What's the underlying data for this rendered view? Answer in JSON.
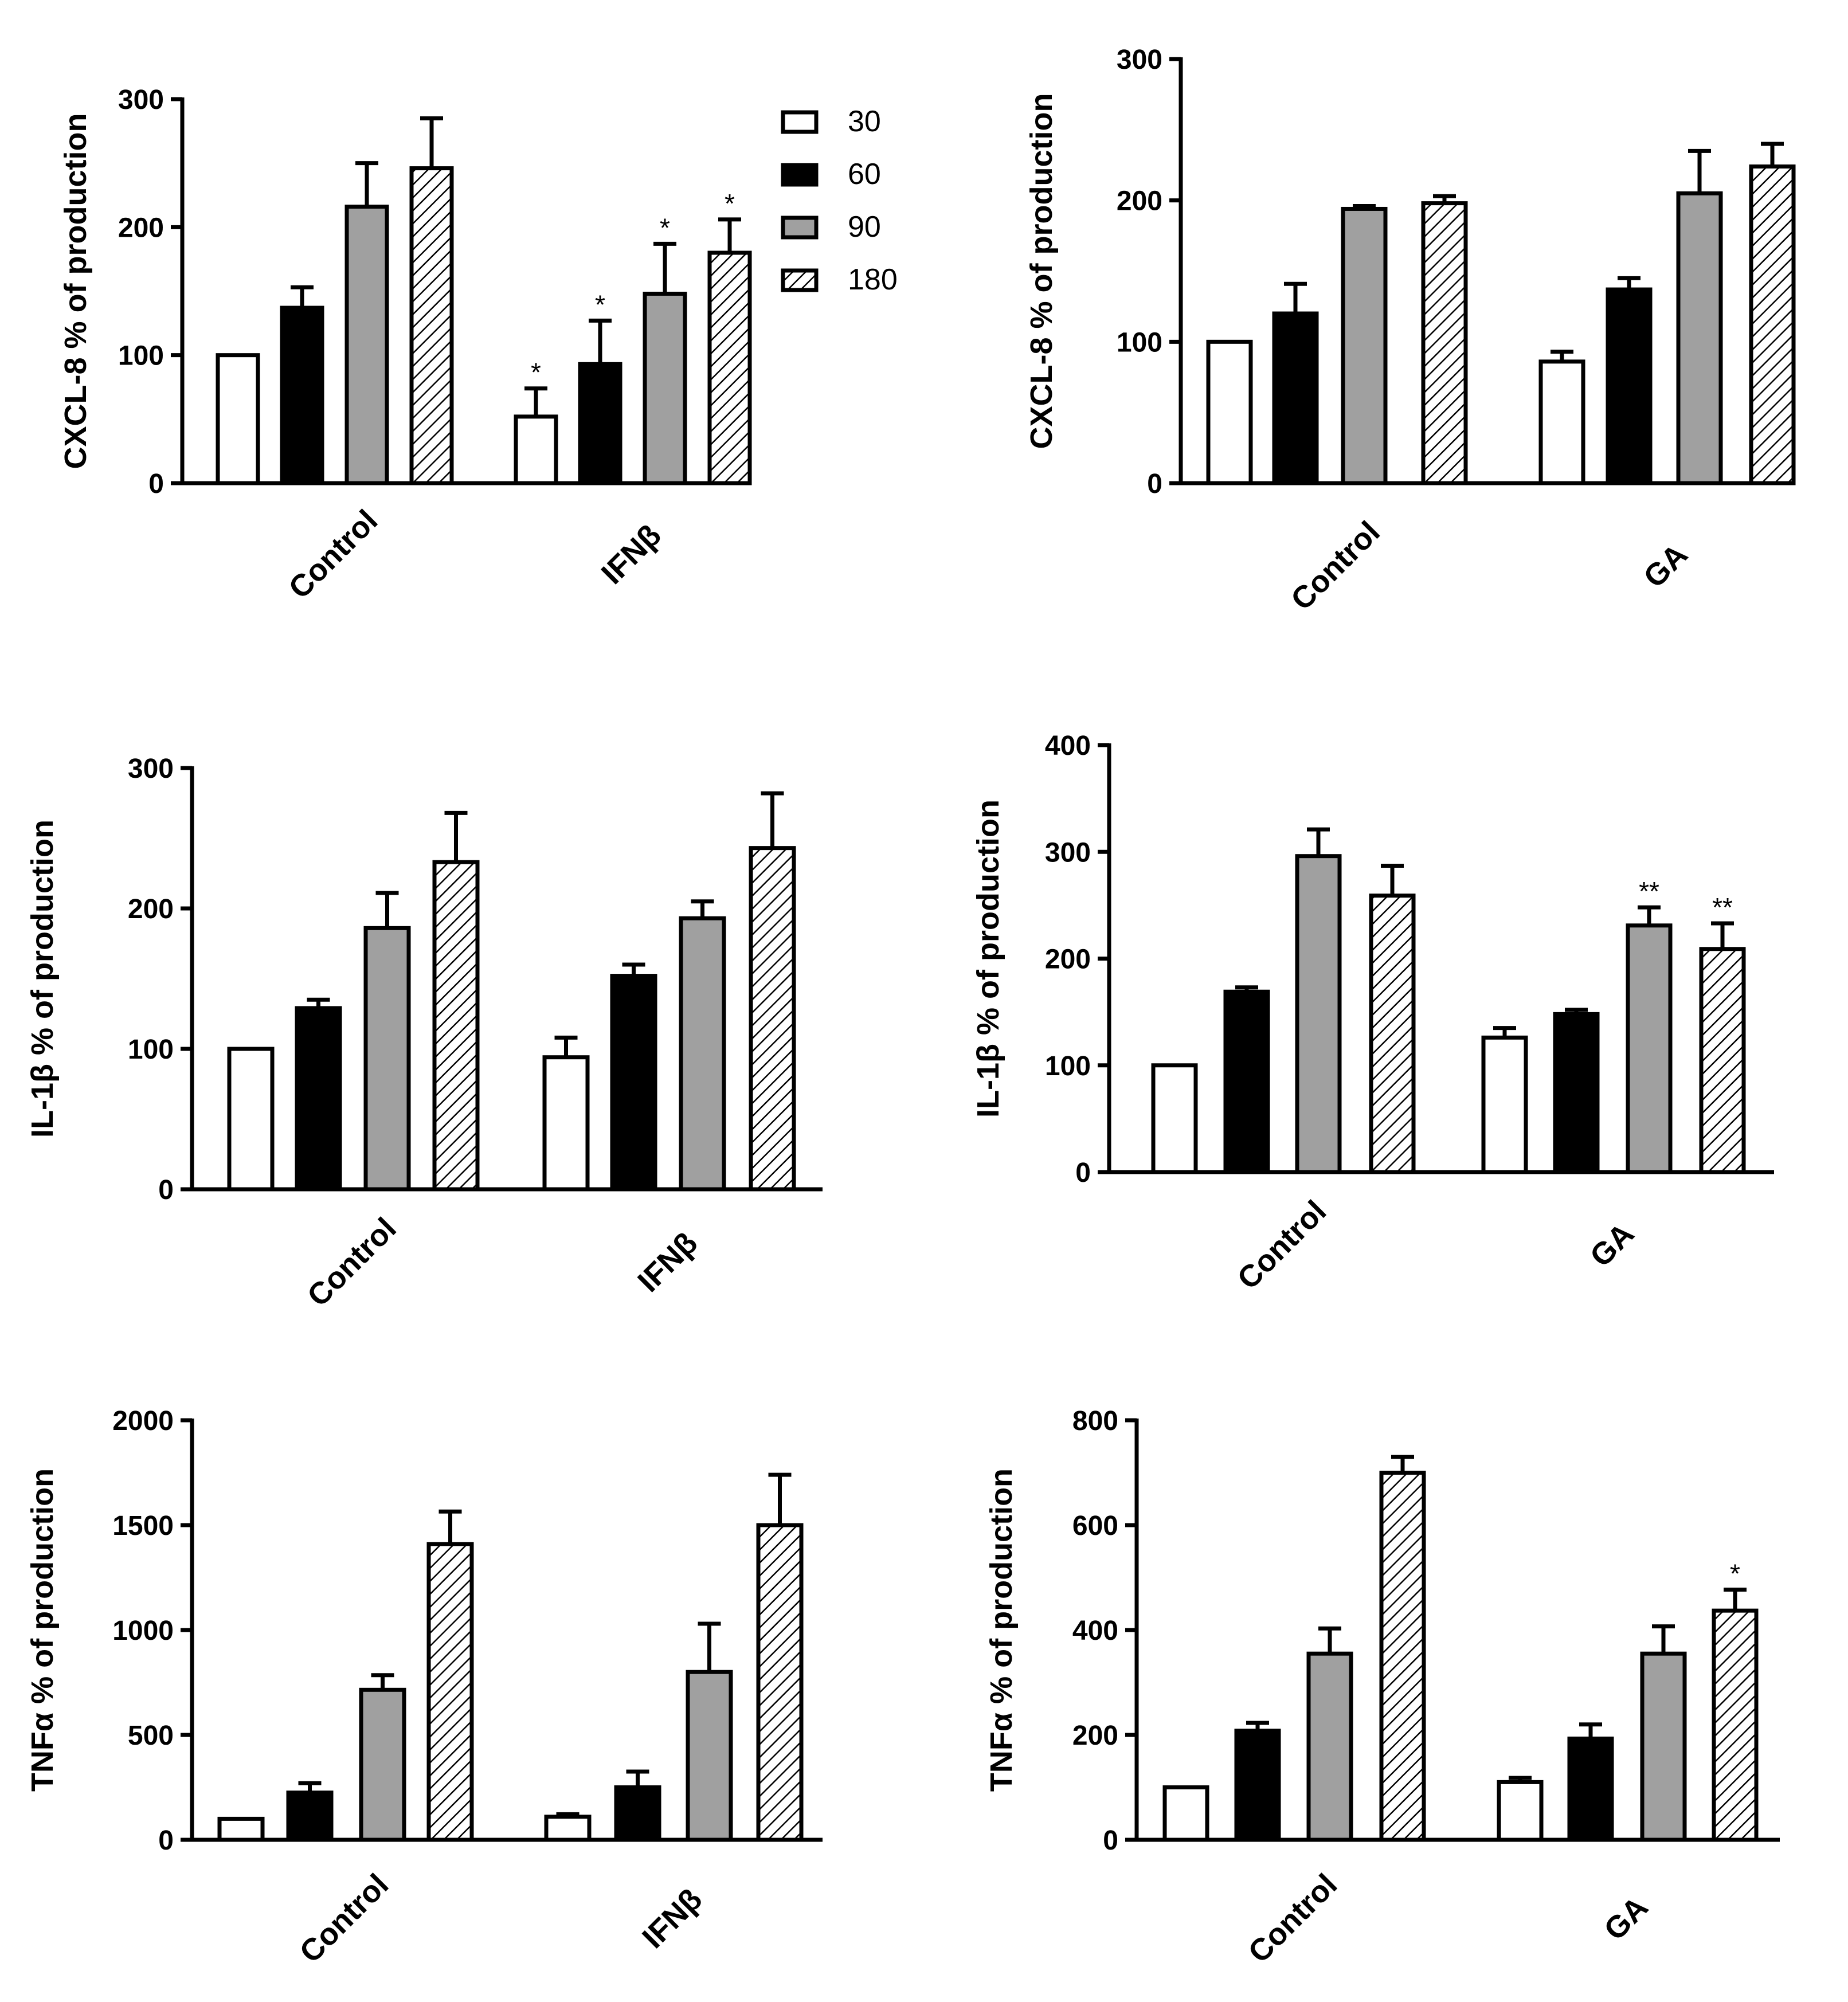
{
  "series_names": [
    "30",
    "60",
    "90",
    "180"
  ],
  "series_fills": {
    "30": "#ffffff",
    "60": "#000000",
    "90": "#a0a0a0",
    "180": "hatch"
  },
  "chart_data": [
    {
      "type": "bar",
      "ylabel": "CXCL-8 % of production",
      "categories": [
        "Control",
        "IFNβ"
      ],
      "ylim": [
        0,
        300
      ],
      "yticks": [
        0,
        100,
        200,
        300
      ],
      "legend": "top-right",
      "series": [
        {
          "name": "30",
          "values": [
            100,
            52
          ],
          "errors": [
            0,
            22
          ],
          "sig": [
            "",
            "*"
          ]
        },
        {
          "name": "60",
          "values": [
            137,
            93
          ],
          "errors": [
            16,
            34
          ],
          "sig": [
            "",
            "*"
          ]
        },
        {
          "name": "90",
          "values": [
            216,
            148
          ],
          "errors": [
            34,
            39
          ],
          "sig": [
            "",
            "*"
          ]
        },
        {
          "name": "180",
          "values": [
            246,
            180
          ],
          "errors": [
            39,
            26
          ],
          "sig": [
            "",
            "*"
          ]
        }
      ]
    },
    {
      "type": "bar",
      "ylabel": "CXCL-8 % of production",
      "categories": [
        "Control",
        "GA"
      ],
      "ylim": [
        0,
        300
      ],
      "yticks": [
        0,
        100,
        200,
        300
      ],
      "series": [
        {
          "name": "30",
          "values": [
            100,
            86
          ],
          "errors": [
            0,
            7
          ],
          "sig": [
            "",
            ""
          ]
        },
        {
          "name": "60",
          "values": [
            120,
            137
          ],
          "errors": [
            21,
            8
          ],
          "sig": [
            "",
            ""
          ]
        },
        {
          "name": "90",
          "values": [
            194,
            205
          ],
          "errors": [
            2,
            30
          ],
          "sig": [
            "",
            ""
          ]
        },
        {
          "name": "180",
          "values": [
            198,
            224
          ],
          "errors": [
            5,
            16
          ],
          "sig": [
            "",
            ""
          ]
        }
      ]
    },
    {
      "type": "bar",
      "ylabel": "IL-1β % of production",
      "categories": [
        "Control",
        "IFNβ"
      ],
      "ylim": [
        0,
        300
      ],
      "yticks": [
        0,
        100,
        200,
        300
      ],
      "series": [
        {
          "name": "30",
          "values": [
            100,
            94
          ],
          "errors": [
            0,
            14
          ],
          "sig": [
            "",
            ""
          ]
        },
        {
          "name": "60",
          "values": [
            129,
            152
          ],
          "errors": [
            6,
            8
          ],
          "sig": [
            "",
            ""
          ]
        },
        {
          "name": "90",
          "values": [
            186,
            193
          ],
          "errors": [
            25,
            12
          ],
          "sig": [
            "",
            ""
          ]
        },
        {
          "name": "180",
          "values": [
            233,
            243
          ],
          "errors": [
            35,
            39
          ],
          "sig": [
            "",
            ""
          ]
        }
      ]
    },
    {
      "type": "bar",
      "ylabel": "IL-1β % of production",
      "categories": [
        "Control",
        "GA"
      ],
      "ylim": [
        0,
        400
      ],
      "yticks": [
        0,
        100,
        200,
        300,
        400
      ],
      "series": [
        {
          "name": "30",
          "values": [
            100,
            126
          ],
          "errors": [
            0,
            9
          ],
          "sig": [
            "",
            ""
          ]
        },
        {
          "name": "60",
          "values": [
            169,
            148
          ],
          "errors": [
            4,
            4
          ],
          "sig": [
            "",
            ""
          ]
        },
        {
          "name": "90",
          "values": [
            296,
            231
          ],
          "errors": [
            25,
            17
          ],
          "sig": [
            "",
            "**"
          ]
        },
        {
          "name": "180",
          "values": [
            259,
            209
          ],
          "errors": [
            28,
            24
          ],
          "sig": [
            "",
            "**"
          ]
        }
      ]
    },
    {
      "type": "bar",
      "ylabel": "TNFα % of production",
      "categories": [
        "Control",
        "IFNβ"
      ],
      "ylim": [
        0,
        2000
      ],
      "yticks": [
        0,
        500,
        1000,
        1500,
        2000
      ],
      "series": [
        {
          "name": "30",
          "values": [
            100,
            110
          ],
          "errors": [
            0,
            12
          ],
          "sig": [
            "",
            ""
          ]
        },
        {
          "name": "60",
          "values": [
            225,
            250
          ],
          "errors": [
            45,
            75
          ],
          "sig": [
            "",
            ""
          ]
        },
        {
          "name": "90",
          "values": [
            715,
            800
          ],
          "errors": [
            70,
            230
          ],
          "sig": [
            "",
            ""
          ]
        },
        {
          "name": "180",
          "values": [
            1410,
            1500
          ],
          "errors": [
            155,
            240
          ],
          "sig": [
            "",
            ""
          ]
        }
      ]
    },
    {
      "type": "bar",
      "ylabel": "TNFα % of production",
      "categories": [
        "Control",
        "GA"
      ],
      "ylim": [
        0,
        800
      ],
      "yticks": [
        0,
        200,
        400,
        600,
        800
      ],
      "series": [
        {
          "name": "30",
          "values": [
            100,
            110
          ],
          "errors": [
            0,
            8
          ],
          "sig": [
            "",
            ""
          ]
        },
        {
          "name": "60",
          "values": [
            208,
            193
          ],
          "errors": [
            15,
            27
          ],
          "sig": [
            "",
            ""
          ]
        },
        {
          "name": "90",
          "values": [
            355,
            355
          ],
          "errors": [
            48,
            52
          ],
          "sig": [
            "",
            ""
          ]
        },
        {
          "name": "180",
          "values": [
            700,
            437
          ],
          "errors": [
            30,
            40
          ],
          "sig": [
            "",
            "*"
          ]
        }
      ]
    }
  ]
}
